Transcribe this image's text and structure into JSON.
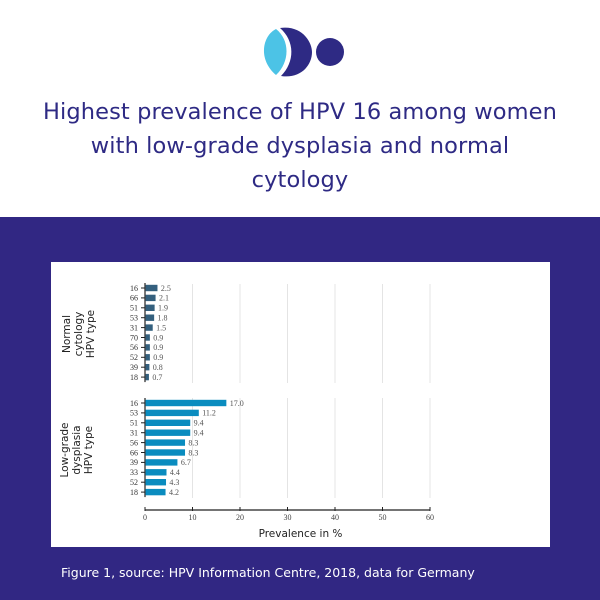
{
  "logo": {
    "name": "brand-logo",
    "colors": {
      "light": "#4cc3e6",
      "dark": "#2e2a84"
    }
  },
  "headline": "Highest prevalence of HPV 16 among women with low-grade dysplasia and normal cytology",
  "caption": "Figure 1,  source: HPV Information Centre, 2018, data for Germany",
  "colors": {
    "brand": "#312783",
    "normal_bar": "#34607e",
    "lowgrade_bar": "#0a8cbf"
  },
  "chart_data": [
    {
      "type": "bar",
      "orientation": "horizontal",
      "panel": "top",
      "ylabel_lines": [
        "Normal",
        "cytology",
        "HPV type"
      ],
      "categories": [
        "16",
        "66",
        "51",
        "53",
        "31",
        "70",
        "56",
        "52",
        "39",
        "18"
      ],
      "values": [
        2.5,
        2.1,
        1.9,
        1.8,
        1.5,
        0.9,
        0.9,
        0.9,
        0.8,
        0.7
      ],
      "value_labels": [
        "2.5",
        "2.1",
        "1.9",
        "1.8",
        "1.5",
        "0.9",
        "0.9",
        "0.9",
        "0.8",
        "0.7"
      ],
      "xlim": [
        0,
        60
      ],
      "grid": true
    },
    {
      "type": "bar",
      "orientation": "horizontal",
      "panel": "bottom",
      "ylabel_lines": [
        "Low-grade",
        "dysplasia",
        "HPV type"
      ],
      "categories": [
        "16",
        "53",
        "51",
        "31",
        "56",
        "66",
        "39",
        "33",
        "52",
        "18"
      ],
      "values": [
        17.0,
        11.2,
        9.4,
        9.4,
        8.3,
        8.3,
        6.7,
        4.4,
        4.3,
        4.2
      ],
      "value_labels": [
        "17.0",
        "11.2",
        "9.4",
        "9.4",
        "8.3",
        "8.3",
        "6.7",
        "4.4",
        "4.3",
        "4.2"
      ],
      "xlim": [
        0,
        60
      ],
      "xticks": [
        "0",
        "10",
        "20",
        "30",
        "40",
        "50",
        "60"
      ],
      "xlabel": "Prevalence in %",
      "grid": true
    }
  ]
}
